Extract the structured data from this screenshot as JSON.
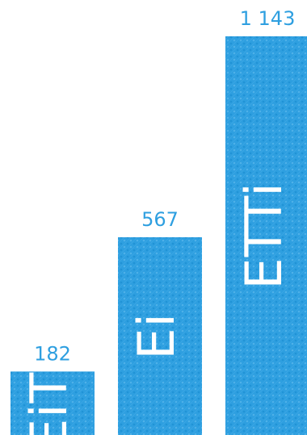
{
  "chart_data": {
    "type": "bar",
    "categories": [
      "EiTI",
      "Ei",
      "ETTi"
    ],
    "values": [
      182,
      567,
      1143
    ],
    "value_labels": [
      "182",
      "567",
      "1 143"
    ],
    "bar_text": [
      "EiTI",
      "Ei",
      "ETTi"
    ],
    "bar_color": "#2E9FE0",
    "label_color": "#2E9FE0",
    "bar_text_color": "#ffffff",
    "ylim": [
      0,
      1143
    ],
    "grid": false,
    "legend": "none"
  }
}
